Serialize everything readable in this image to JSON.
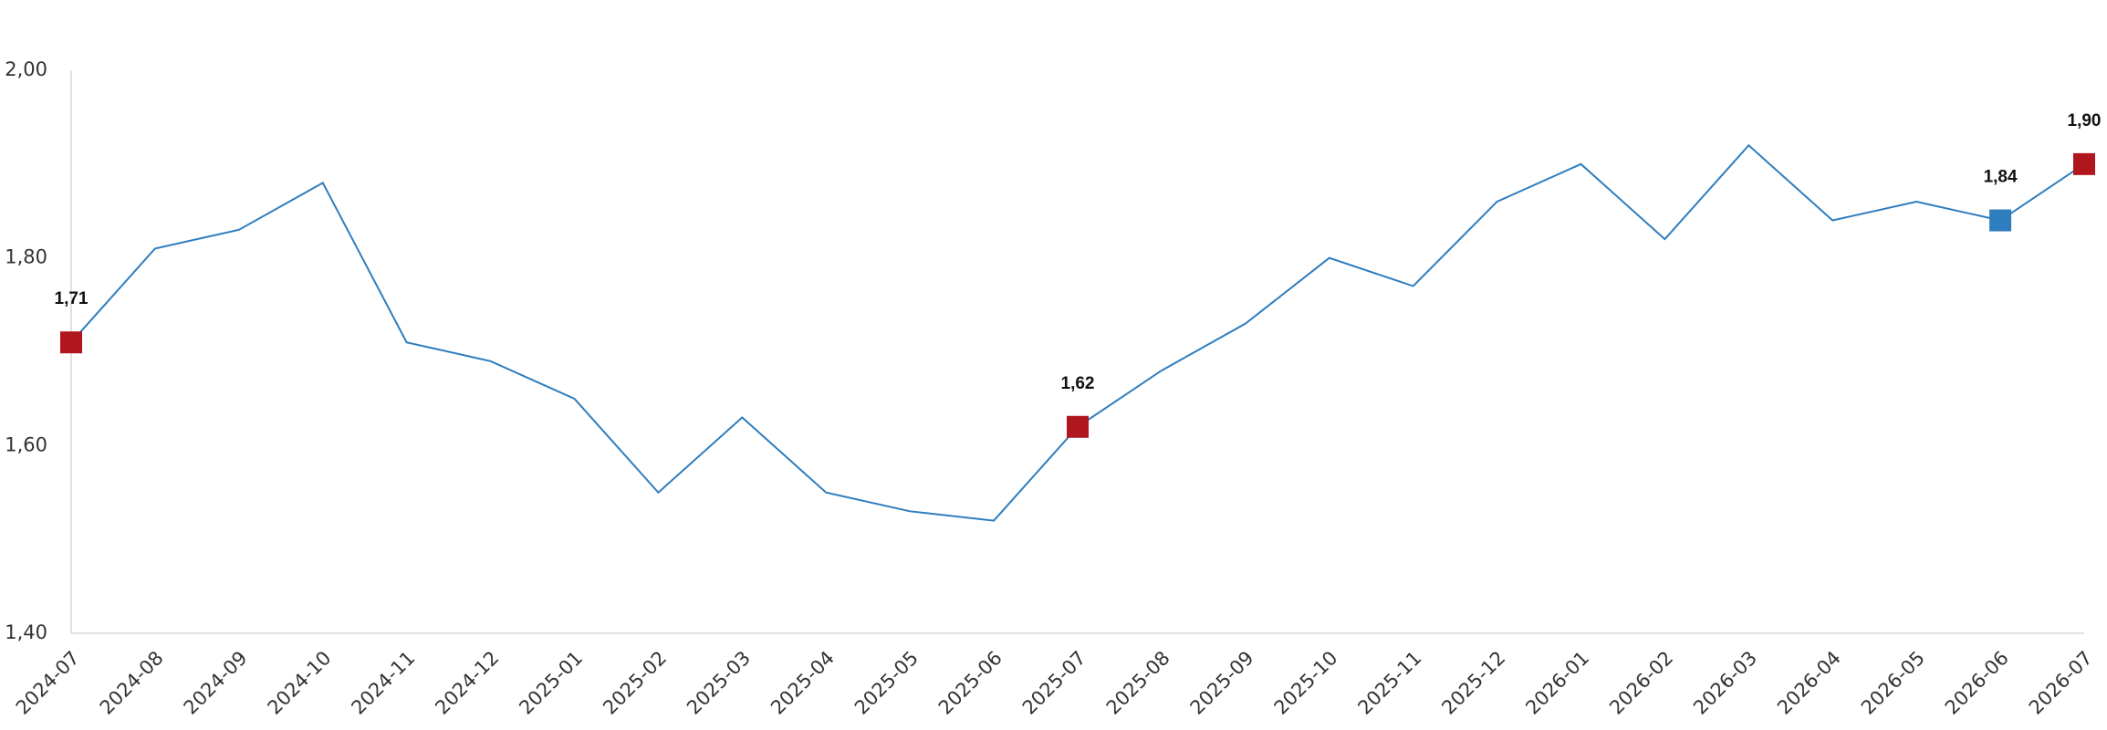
{
  "chart_data": {
    "type": "line",
    "categories": [
      "2024-07",
      "2024-08",
      "2024-09",
      "2024-10",
      "2024-11",
      "2024-12",
      "2025-01",
      "2025-02",
      "2025-03",
      "2025-04",
      "2025-05",
      "2025-06",
      "2025-07",
      "2025-08",
      "2025-09",
      "2025-10",
      "2025-11",
      "2025-12",
      "2026-01",
      "2026-02",
      "2026-03",
      "2026-04",
      "2026-05",
      "2026-06",
      "2026-07"
    ],
    "values": [
      1.71,
      1.81,
      1.83,
      1.88,
      1.71,
      1.69,
      1.65,
      1.55,
      1.63,
      1.55,
      1.53,
      1.52,
      1.62,
      1.68,
      1.73,
      1.8,
      1.77,
      1.86,
      1.9,
      1.82,
      1.92,
      1.84,
      1.86,
      1.84,
      1.9
    ],
    "value_labels": [
      "1,71",
      null,
      null,
      null,
      null,
      null,
      null,
      null,
      null,
      null,
      null,
      null,
      "1,62",
      null,
      null,
      null,
      null,
      null,
      null,
      null,
      null,
      null,
      null,
      "1,84",
      "1,90"
    ],
    "marker_colors": [
      "#b0161e",
      null,
      null,
      null,
      null,
      null,
      null,
      null,
      null,
      null,
      null,
      null,
      "#b0161e",
      null,
      null,
      null,
      null,
      null,
      null,
      null,
      null,
      null,
      null,
      "#2e7dbf",
      "#b0161e"
    ],
    "color": "#2e7dbf",
    "ylim": [
      1.4,
      2.0
    ],
    "yticks": [
      {
        "value": 1.4,
        "label": "1,40"
      },
      {
        "value": 1.6,
        "label": "1,60"
      },
      {
        "value": 1.8,
        "label": "1,80"
      },
      {
        "value": 2.0,
        "label": "2,00"
      }
    ],
    "grid": false
  }
}
